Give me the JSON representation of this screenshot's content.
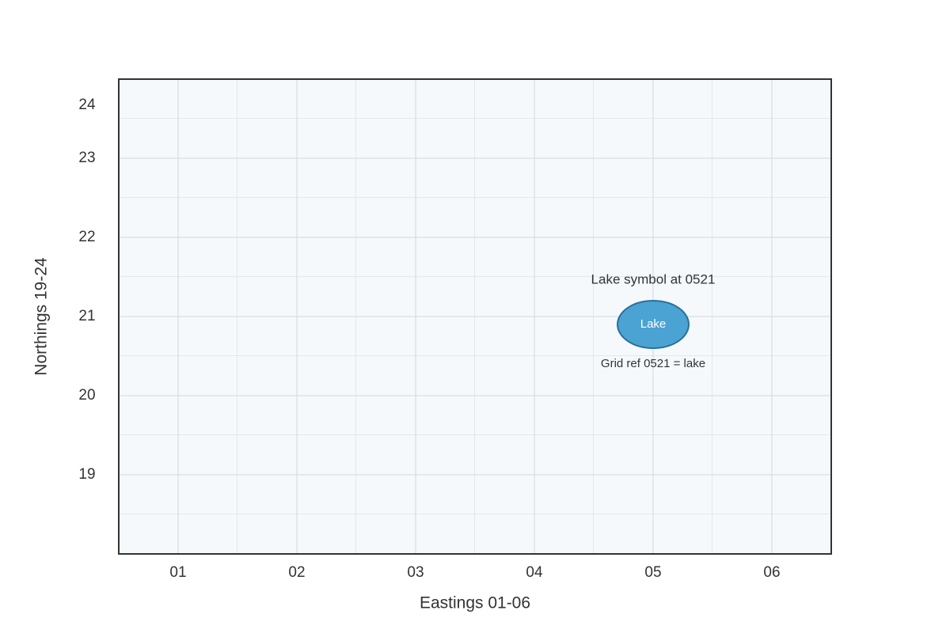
{
  "map": {
    "x_label": "Eastings 01-06",
    "y_label": "Northings 19-24",
    "xlim": [
      0.5,
      6.5
    ],
    "ylim": [
      18,
      24
    ],
    "xticks": [
      {
        "value": 1,
        "label": "01"
      },
      {
        "value": 2,
        "label": "02"
      },
      {
        "value": 3,
        "label": "03"
      },
      {
        "value": 4,
        "label": "04"
      },
      {
        "value": 5,
        "label": "05"
      },
      {
        "value": 6,
        "label": "06"
      }
    ],
    "yticks": [
      19,
      20,
      21,
      22,
      23,
      24
    ],
    "features": [
      {
        "label": "Lake",
        "x": 5,
        "y": 20.9,
        "annotation": "Lake symbol at 0521",
        "caption": "Grid ref 0521 = lake",
        "color": "#4ba3d3"
      }
    ]
  }
}
